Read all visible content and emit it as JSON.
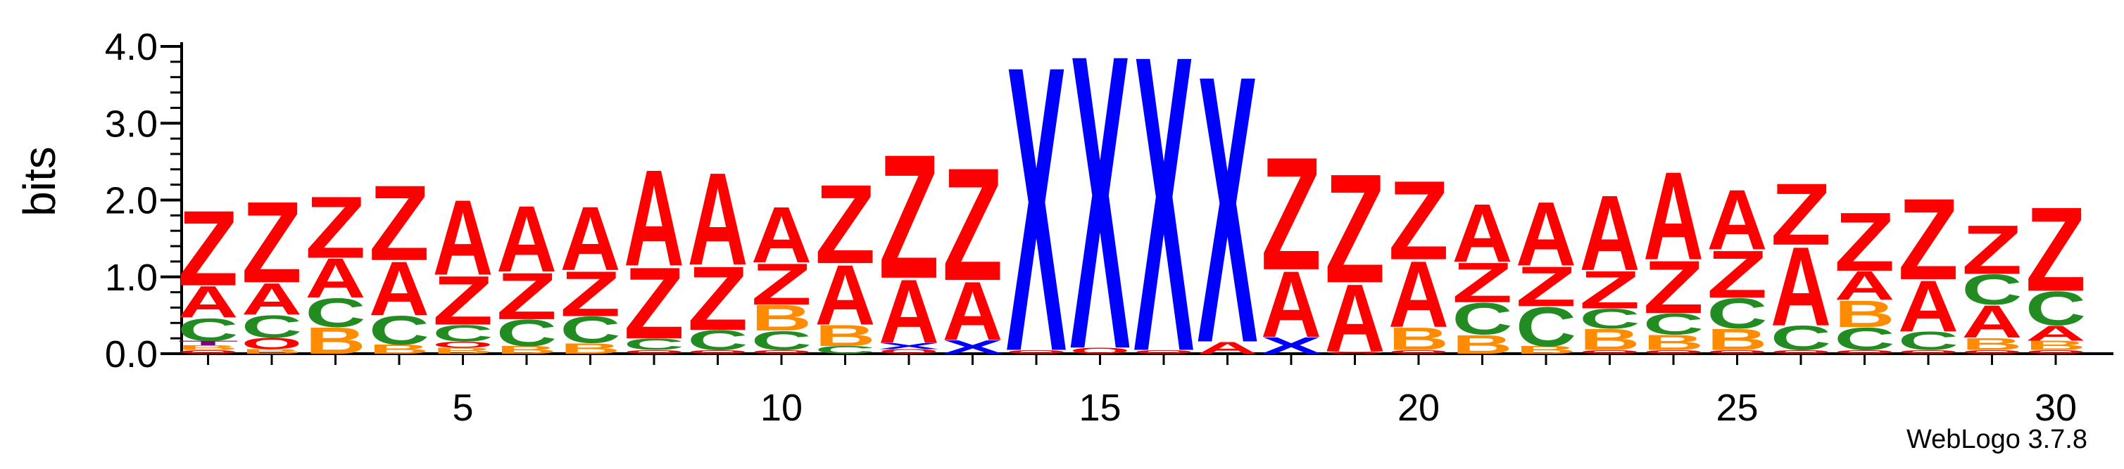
{
  "chart_data": {
    "type": "sequence-logo",
    "ylabel": "bits",
    "ylim": [
      0,
      4.0
    ],
    "y_ticks": [
      "0.0",
      "1.0",
      "2.0",
      "3.0",
      "4.0"
    ],
    "x_ticks": [
      5,
      10,
      15,
      20,
      25,
      30
    ],
    "positions": [
      1,
      2,
      3,
      4,
      5,
      6,
      7,
      8,
      9,
      10,
      11,
      12,
      13,
      14,
      15,
      16,
      17,
      18,
      19,
      20,
      21,
      22,
      23,
      24,
      25,
      26,
      27,
      28,
      29,
      30
    ],
    "colors": {
      "Z": "#ff0000",
      "A": "#ff0000",
      "C": "#228b22",
      "B": "#ff8c00",
      "X": "#0000ff",
      "O": "#ff0000",
      "T": "#800080"
    },
    "stacks": [
      [
        [
          "O",
          0.05
        ],
        [
          "B",
          0.06
        ],
        [
          "T",
          0.06
        ],
        [
          "C",
          0.3
        ],
        [
          "A",
          0.42
        ],
        [
          "Z",
          1.0
        ]
      ],
      [
        [
          "B",
          0.06
        ],
        [
          "O",
          0.15
        ],
        [
          "C",
          0.3
        ],
        [
          "A",
          0.42
        ],
        [
          "Z",
          1.08
        ]
      ],
      [
        [
          "B",
          0.35
        ],
        [
          "C",
          0.38
        ],
        [
          "A",
          0.52
        ],
        [
          "Z",
          0.82
        ]
      ],
      [
        [
          "B",
          0.12
        ],
        [
          "C",
          0.38
        ],
        [
          "A",
          0.72
        ],
        [
          "Z",
          1.0
        ]
      ],
      [
        [
          "B",
          0.08
        ],
        [
          "O",
          0.08
        ],
        [
          "C",
          0.22
        ],
        [
          "Z",
          0.65
        ],
        [
          "A",
          1.0
        ]
      ],
      [
        [
          "B",
          0.1
        ],
        [
          "C",
          0.35
        ],
        [
          "Z",
          0.62
        ],
        [
          "A",
          0.88
        ]
      ],
      [
        [
          "B",
          0.14
        ],
        [
          "C",
          0.35
        ],
        [
          "Z",
          0.6
        ],
        [
          "A",
          0.85
        ]
      ],
      [
        [
          "O",
          0.05
        ],
        [
          "C",
          0.15
        ],
        [
          "Z",
          0.95
        ],
        [
          "A",
          1.28
        ]
      ],
      [
        [
          "O",
          0.05
        ],
        [
          "C",
          0.26
        ],
        [
          "Z",
          0.85
        ],
        [
          "A",
          1.23
        ]
      ],
      [
        [
          "O",
          0.05
        ],
        [
          "C",
          0.25
        ],
        [
          "B",
          0.34
        ],
        [
          "Z",
          0.55
        ],
        [
          "A",
          0.74
        ]
      ],
      [
        [
          "C",
          0.1
        ],
        [
          "B",
          0.28
        ],
        [
          "A",
          0.8
        ],
        [
          "Z",
          1.05
        ]
      ],
      [
        [
          "O",
          0.06
        ],
        [
          "X",
          0.08
        ],
        [
          "A",
          0.85
        ],
        [
          "Z",
          1.65
        ]
      ],
      [
        [
          "X",
          0.18
        ],
        [
          "A",
          0.78
        ],
        [
          "Z",
          1.5
        ]
      ],
      [
        [
          "O",
          0.05
        ],
        [
          "X",
          3.8
        ]
      ],
      [
        [
          "O",
          0.08
        ],
        [
          "X",
          3.92
        ]
      ],
      [
        [
          "O",
          0.05
        ],
        [
          "X",
          3.94
        ]
      ],
      [
        [
          "A",
          0.16
        ],
        [
          "X",
          3.56
        ]
      ],
      [
        [
          "X",
          0.22
        ],
        [
          "A",
          0.88
        ],
        [
          "Z",
          1.5
        ]
      ],
      [
        [
          "O",
          0.03
        ],
        [
          "A",
          0.9
        ],
        [
          "Z",
          1.45
        ]
      ],
      [
        [
          "O",
          0.05
        ],
        [
          "B",
          0.3
        ],
        [
          "A",
          0.88
        ],
        [
          "Z",
          1.05
        ]
      ],
      [
        [
          "B",
          0.25
        ],
        [
          "C",
          0.42
        ],
        [
          "Z",
          0.53
        ],
        [
          "A",
          0.77
        ]
      ],
      [
        [
          "B",
          0.1
        ],
        [
          "C",
          0.52
        ],
        [
          "Z",
          0.53
        ],
        [
          "A",
          0.85
        ]
      ],
      [
        [
          "O",
          0.05
        ],
        [
          "B",
          0.28
        ],
        [
          "C",
          0.26
        ],
        [
          "Z",
          0.5
        ],
        [
          "A",
          1.0
        ]
      ],
      [
        [
          "O",
          0.05
        ],
        [
          "B",
          0.2
        ],
        [
          "C",
          0.28
        ],
        [
          "Z",
          0.7
        ],
        [
          "A",
          1.17
        ]
      ],
      [
        [
          "O",
          0.05
        ],
        [
          "B",
          0.28
        ],
        [
          "C",
          0.4
        ],
        [
          "Z",
          0.63
        ],
        [
          "A",
          0.8
        ]
      ],
      [
        [
          "O",
          0.05
        ],
        [
          "C",
          0.32
        ],
        [
          "A",
          1.05
        ],
        [
          "Z",
          0.82
        ]
      ],
      [
        [
          "O",
          0.05
        ],
        [
          "C",
          0.3
        ],
        [
          "B",
          0.35
        ],
        [
          "A",
          0.38
        ],
        [
          "Z",
          0.78
        ]
      ],
      [
        [
          "O",
          0.05
        ],
        [
          "C",
          0.24
        ],
        [
          "A",
          0.68
        ],
        [
          "Z",
          1.08
        ]
      ],
      [
        [
          "O",
          0.05
        ],
        [
          "B",
          0.16
        ],
        [
          "A",
          0.43
        ],
        [
          "C",
          0.4
        ],
        [
          "Z",
          0.65
        ]
      ],
      [
        [
          "O",
          0.05
        ],
        [
          "B",
          0.12
        ],
        [
          "A",
          0.2
        ],
        [
          "C",
          0.45
        ],
        [
          "Z",
          1.12
        ]
      ]
    ]
  },
  "watermark": "WebLogo 3.7.8"
}
